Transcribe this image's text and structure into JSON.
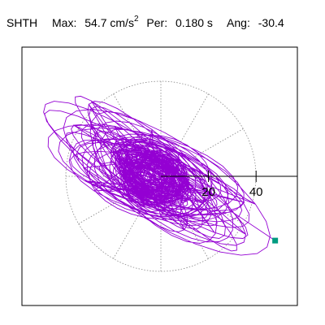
{
  "header": {
    "station": "SHTH",
    "max_label": "Max:",
    "max_value": "54.7 cm/s",
    "max_exp": "2",
    "per_label": "Per:",
    "per_value": "0.180 s",
    "ang_label": "Ang:",
    "ang_value": "-30.4"
  },
  "chart_data": {
    "type": "scatter",
    "title": "",
    "ring_labels": [
      "20",
      "40"
    ],
    "ring_values": [
      20,
      40
    ],
    "ring_max": 60,
    "direction_angle_deg": -30.4,
    "max_amplitude": 54.7,
    "grid": true,
    "colors": {
      "trace": "#9400d3",
      "marker": "#009b80",
      "grid": "#888888",
      "axis": "#000000"
    },
    "trace_envelope": [
      {
        "x": -48,
        "y": 18
      },
      {
        "x": -10,
        "y": 35
      },
      {
        "x": 25,
        "y": 22
      },
      {
        "x": 49,
        "y": -2
      },
      {
        "x": 48,
        "y": -27
      },
      {
        "x": 10,
        "y": -33
      },
      {
        "x": -35,
        "y": -20
      }
    ],
    "end_marker": {
      "x": 48,
      "y": -27
    }
  }
}
